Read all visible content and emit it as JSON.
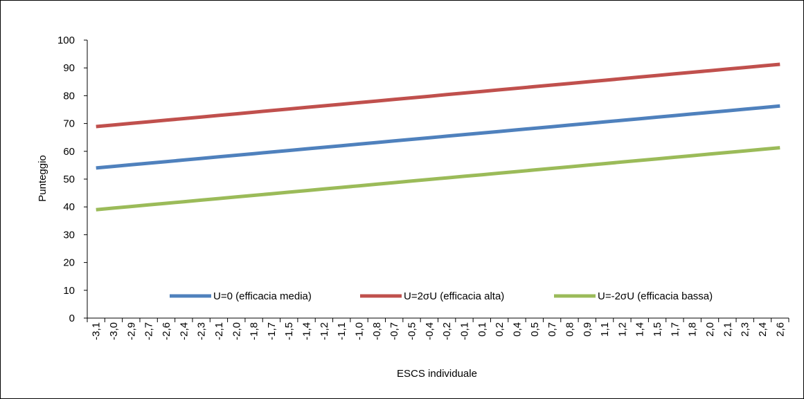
{
  "chart_data": {
    "type": "line",
    "title": "",
    "xlabel": "ESCS individuale",
    "ylabel": "Punteggio",
    "ylim": [
      0,
      100
    ],
    "yticks": [
      "0",
      "10",
      "20",
      "30",
      "40",
      "50",
      "60",
      "70",
      "80",
      "90",
      "100"
    ],
    "grid": false,
    "legend": "bottom-inside",
    "categories": [
      "-3,1",
      "-3,0",
      "-2,9",
      "-2,7",
      "-2,6",
      "-2,4",
      "-2,3",
      "-2,1",
      "-2,0",
      "-1,8",
      "-1,7",
      "-1,5",
      "-1,4",
      "-1,2",
      "-1,1",
      "-1,0",
      "-0,8",
      "-0,7",
      "-0,5",
      "-0,4",
      "-0,2",
      "-0,1",
      "0,1",
      "0,2",
      "0,4",
      "0,5",
      "0,7",
      "0,8",
      "0,9",
      "1,1",
      "1,2",
      "1,4",
      "1,5",
      "1,7",
      "1,8",
      "2,0",
      "2,1",
      "2,3",
      "2,4",
      "2,6"
    ],
    "series": [
      {
        "name": "U=0 (efficacia media)",
        "color": "#4F81BD",
        "start": 54.0,
        "end": 76.3
      },
      {
        "name": "U=2σU (efficacia alta)",
        "color": "#C0504D",
        "start": 68.9,
        "end": 91.3
      },
      {
        "name": "U=-2σU (efficacia bassa)",
        "color": "#9BBB59",
        "start": 39.0,
        "end": 61.3
      }
    ]
  }
}
